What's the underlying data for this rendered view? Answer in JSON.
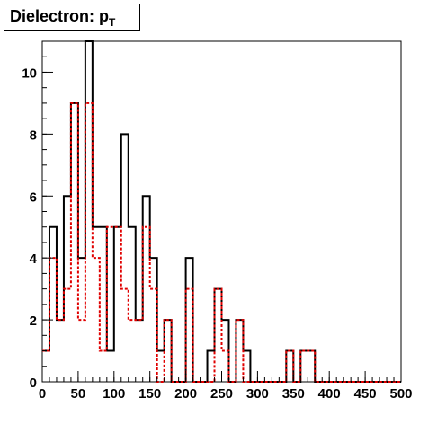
{
  "chart_data": {
    "type": "histogram",
    "title_main": "Dielectron: p",
    "title_sub": "T",
    "xlabel": "",
    "ylabel": "",
    "xlim": [
      0,
      500
    ],
    "ylim": [
      0,
      11
    ],
    "bin_width": 10,
    "x_ticks": [
      0,
      50,
      100,
      150,
      200,
      250,
      300,
      350,
      400,
      450,
      500
    ],
    "y_ticks": [
      0,
      2,
      4,
      6,
      8,
      10
    ],
    "grid": false,
    "series": [
      {
        "color": "#000000",
        "style": "solid",
        "values": [
          1,
          5,
          2,
          6,
          9,
          4,
          11,
          5,
          5,
          1,
          5,
          8,
          5,
          2,
          6,
          4,
          1,
          2,
          0,
          0,
          4,
          0,
          0,
          1,
          3,
          2,
          0,
          2,
          1,
          0,
          0,
          0,
          0,
          0,
          1,
          0,
          1,
          1,
          0,
          0,
          0,
          0,
          0,
          0,
          0,
          0,
          0,
          0,
          0,
          0
        ]
      },
      {
        "color": "#e00000",
        "style": "dotted",
        "values": [
          1,
          4,
          2,
          3,
          9,
          2,
          9,
          4,
          1,
          5,
          5,
          3,
          2,
          2,
          5,
          3,
          0,
          2,
          0,
          0,
          3,
          0,
          0,
          0,
          3,
          1,
          0,
          2,
          0,
          0,
          0,
          0,
          0,
          0,
          1,
          0,
          1,
          1,
          0,
          0,
          0,
          0,
          0,
          0,
          0,
          0,
          0,
          0,
          0,
          0
        ]
      }
    ]
  }
}
